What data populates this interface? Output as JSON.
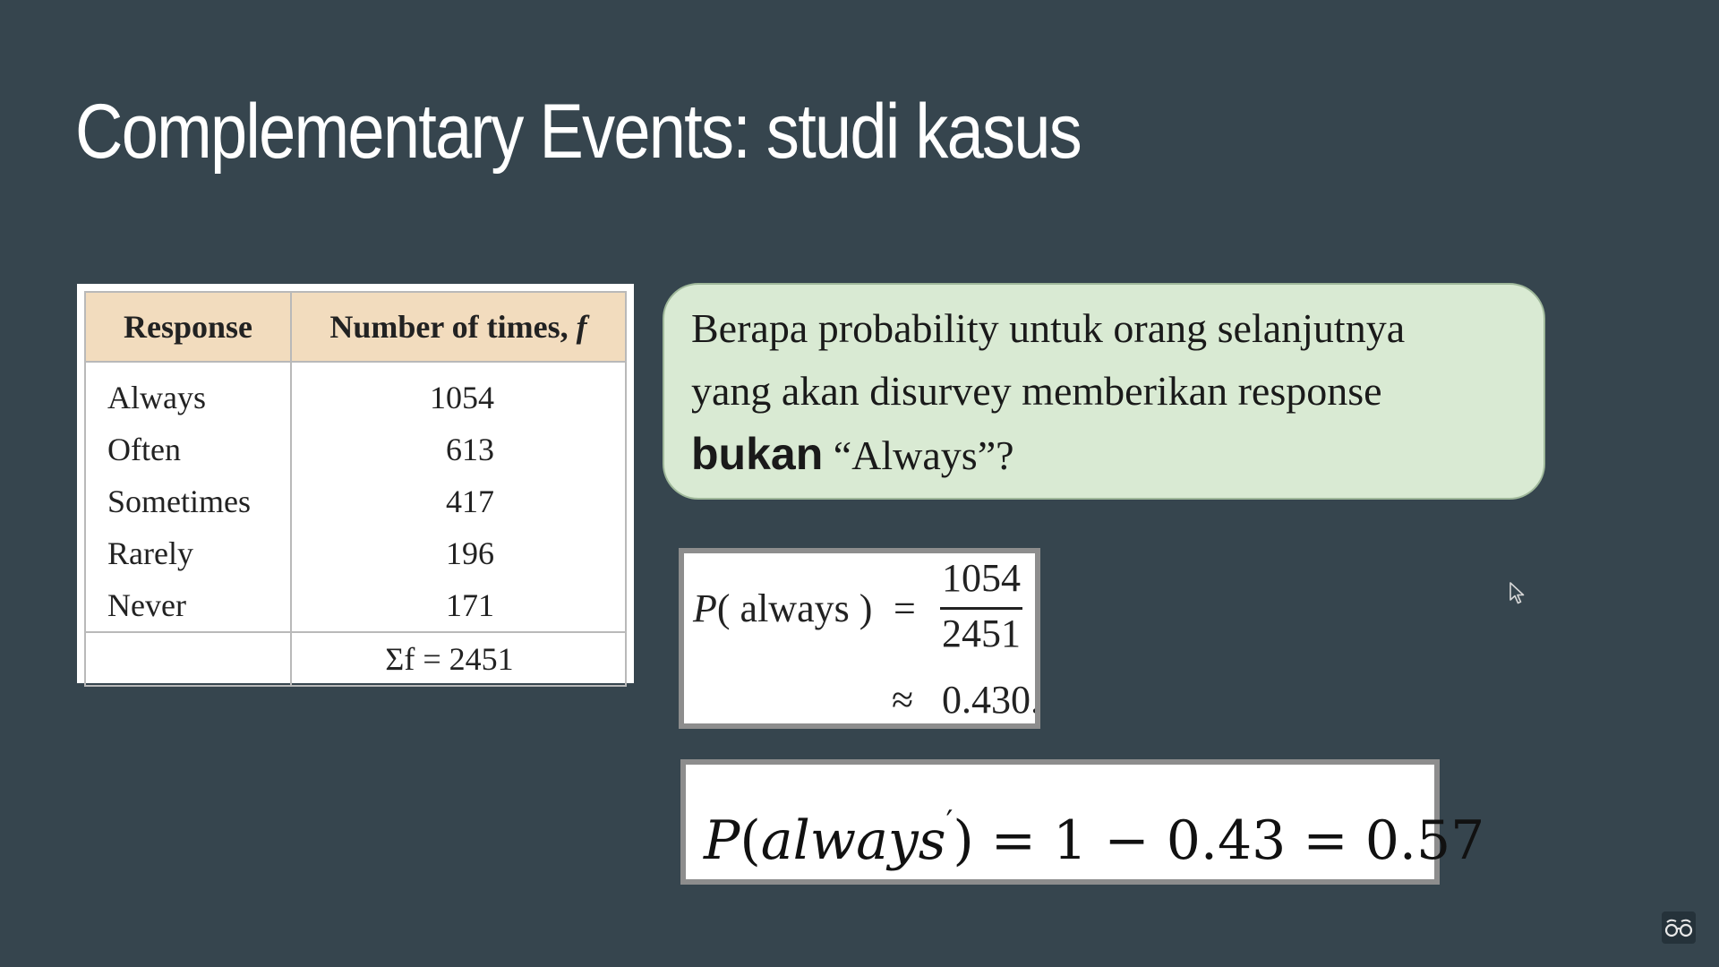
{
  "slide": {
    "title": "Complementary Events: studi kasus"
  },
  "table": {
    "header_response": "Response",
    "header_count": "Number of times,",
    "header_count_var": "f",
    "rows": [
      {
        "response": "Always",
        "count": "1054"
      },
      {
        "response": "Often",
        "count": "613"
      },
      {
        "response": "Sometimes",
        "count": "417"
      },
      {
        "response": "Rarely",
        "count": "196"
      },
      {
        "response": "Never",
        "count": "171"
      }
    ],
    "total": "Σf = 2451"
  },
  "question": {
    "line1": "Berapa probability untuk orang selanjutnya",
    "line2": "yang akan disurvey memberikan response",
    "bold_word": "bukan",
    "line3_rest": " “Always”?"
  },
  "formula1": {
    "lhs_var": "P",
    "lhs_arg": "( always )",
    "equals": "=",
    "numerator": "1054",
    "denominator": "2451",
    "approx_sign": "≈",
    "approx_value": "0.430."
  },
  "formula2": {
    "var": "P",
    "arg": "always",
    "prime": "′",
    "rest": ") = 1 − 0.43 = 0.57"
  },
  "icons": {
    "cursor": "mouse-cursor-icon",
    "corner": "glasses-icon"
  }
}
